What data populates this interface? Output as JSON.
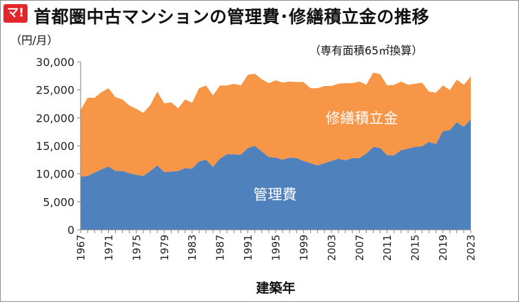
{
  "logo_text": "マ!",
  "title": "首都圏中古マンションの管理費･修繕積立金の推移",
  "unit": "（円/月）",
  "subtitle": "（専有面積65㎡換算）",
  "colors": {
    "management_fee": "#4f81bd",
    "repair_reserve": "#f79646"
  },
  "chart_data": {
    "type": "area",
    "stacked": true,
    "xlabel": "建築年",
    "ylabel": "（円/月）",
    "ylim": [
      0,
      30000
    ],
    "yticks": [
      "0",
      "5,000",
      "10,000",
      "15,000",
      "20,000",
      "25,000",
      "30,000"
    ],
    "xtick_labels": [
      "1967",
      "1971",
      "1975",
      "1979",
      "1983",
      "1987",
      "1991",
      "1995",
      "1999",
      "2003",
      "2007",
      "2011",
      "2015",
      "2019",
      "2023"
    ],
    "grid": false,
    "x": [
      1967,
      1968,
      1969,
      1970,
      1971,
      1972,
      1973,
      1974,
      1975,
      1976,
      1977,
      1978,
      1979,
      1980,
      1981,
      1982,
      1983,
      1984,
      1985,
      1986,
      1987,
      1988,
      1989,
      1990,
      1991,
      1992,
      1993,
      1994,
      1995,
      1996,
      1997,
      1998,
      1999,
      2000,
      2001,
      2002,
      2003,
      2004,
      2005,
      2006,
      2007,
      2008,
      2009,
      2010,
      2011,
      2012,
      2013,
      2014,
      2015,
      2016,
      2017,
      2018,
      2019,
      2020,
      2021,
      2022,
      2023
    ],
    "series": [
      {
        "name": "管理費",
        "values": [
          9500,
          9600,
          10200,
          10800,
          11300,
          10500,
          10500,
          10100,
          9800,
          9600,
          10500,
          11500,
          10300,
          10400,
          10500,
          11000,
          10900,
          12200,
          12500,
          11200,
          12700,
          13500,
          13500,
          13400,
          14600,
          15000,
          14000,
          13000,
          12900,
          12500,
          12900,
          12800,
          12300,
          11900,
          11500,
          11900,
          12300,
          12700,
          12400,
          12800,
          12800,
          13600,
          14800,
          14600,
          13300,
          13300,
          14200,
          14500,
          14800,
          14900,
          15700,
          15300,
          17600,
          17800,
          19200,
          18400,
          19700
        ]
      },
      {
        "name": "修繕積立金",
        "values": [
          11900,
          14000,
          13400,
          13800,
          14000,
          13200,
          12800,
          12100,
          11800,
          11300,
          11800,
          13200,
          12300,
          12400,
          11200,
          12300,
          11800,
          13100,
          13300,
          12800,
          13100,
          12300,
          12600,
          12400,
          13100,
          12900,
          12900,
          13200,
          13800,
          13800,
          13600,
          13600,
          14100,
          13400,
          13800,
          13800,
          13400,
          13400,
          13800,
          13400,
          13700,
          12300,
          13300,
          13200,
          12500,
          12600,
          12300,
          11400,
          11300,
          11400,
          9000,
          9200,
          8200,
          7200,
          7600,
          7500,
          7700
        ]
      }
    ],
    "series_labels": [
      "修繕積立金",
      "管理費"
    ]
  }
}
